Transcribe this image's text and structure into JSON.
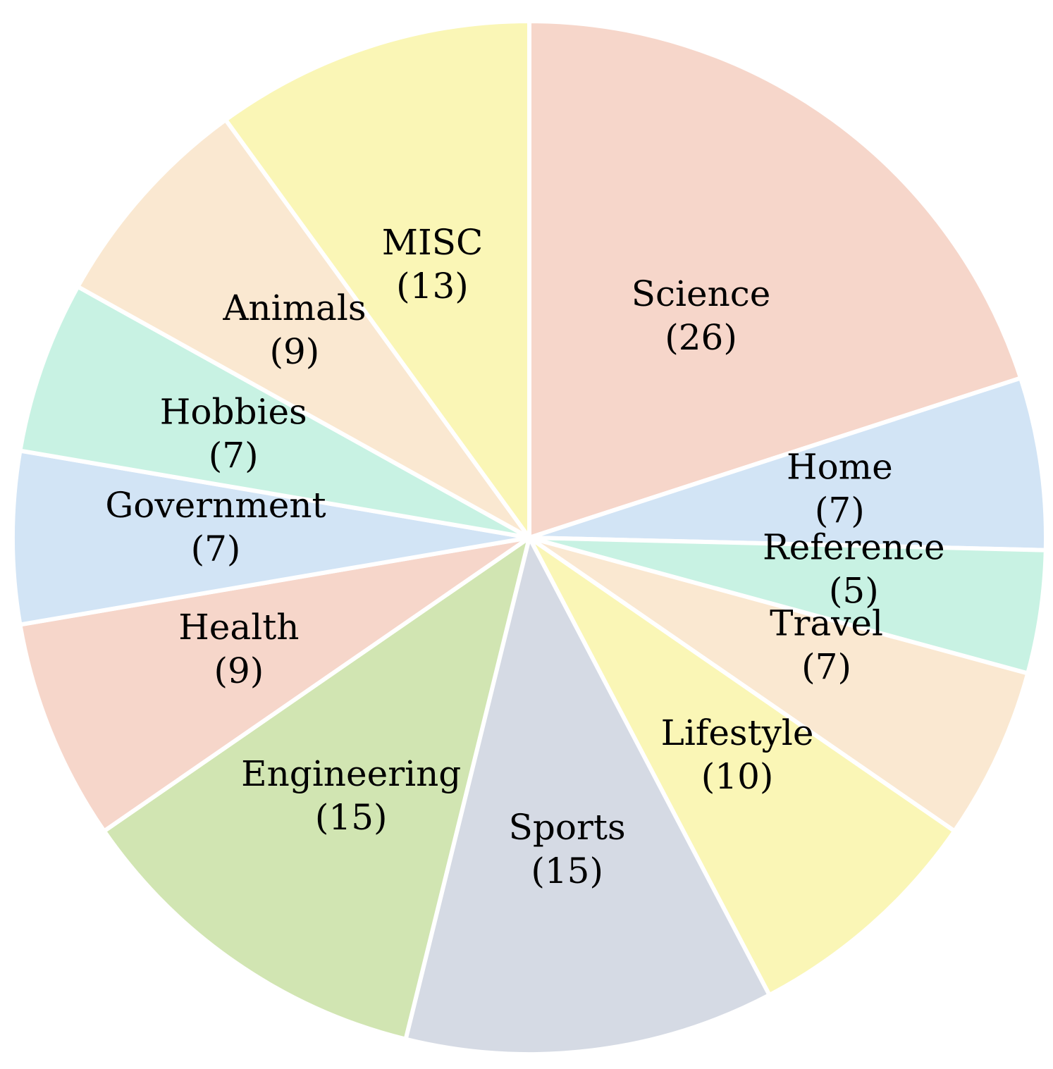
{
  "chart_data": {
    "type": "pie",
    "title": "",
    "start": "12 o'clock",
    "direction": "clockwise",
    "legend": "none",
    "slices": [
      {
        "label": "Science",
        "value": 26,
        "value_label": "(26)",
        "color": "#F6D6CA"
      },
      {
        "label": "Home",
        "value": 7,
        "value_label": "(7)",
        "color": "#D2E4F5"
      },
      {
        "label": "Reference",
        "value": 5,
        "value_label": "(5)",
        "color": "#C8F2E3"
      },
      {
        "label": "Travel",
        "value": 7,
        "value_label": "(7)",
        "color": "#FAE8D1"
      },
      {
        "label": "Lifestyle",
        "value": 10,
        "value_label": "(10)",
        "color": "#FAF6B6"
      },
      {
        "label": "Sports",
        "value": 15,
        "value_label": "(15)",
        "color": "#D5DAE4"
      },
      {
        "label": "Engineering",
        "value": 15,
        "value_label": "(15)",
        "color": "#D1E5B2"
      },
      {
        "label": "Health",
        "value": 9,
        "value_label": "(9)",
        "color": "#F6D6CA"
      },
      {
        "label": "Government",
        "value": 7,
        "value_label": "(7)",
        "color": "#D2E4F5"
      },
      {
        "label": "Hobbies",
        "value": 7,
        "value_label": "(7)",
        "color": "#C8F2E3"
      },
      {
        "label": "Animals",
        "value": 9,
        "value_label": "(9)",
        "color": "#FAE8D1"
      },
      {
        "label": "MISC",
        "value": 13,
        "value_label": "(13)",
        "color": "#FAF6B6"
      }
    ]
  }
}
